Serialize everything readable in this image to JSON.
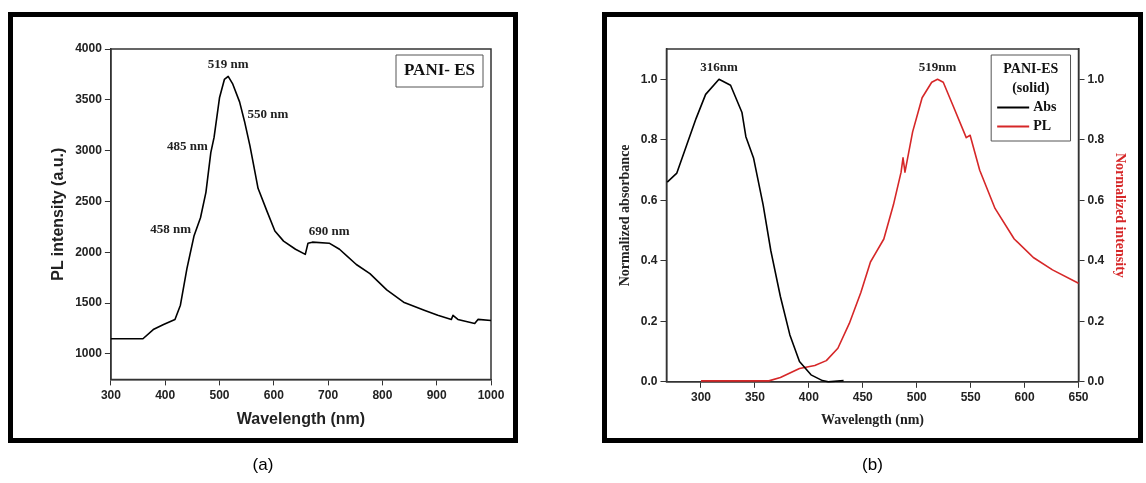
{
  "chart_data": [
    {
      "type": "line",
      "xlabel": "Wavelength (nm)",
      "ylabel": "PL intensity (a.u.)",
      "legend_title": "PANI- ES",
      "xlim": [
        300,
        1000
      ],
      "xticks": [
        300,
        400,
        500,
        600,
        700,
        800,
        900,
        1000
      ],
      "ylim": [
        750,
        4000
      ],
      "yticks": [
        1000,
        1500,
        2000,
        2500,
        3000,
        3500,
        4000
      ],
      "series": [
        {
          "color": "#000000",
          "x": [
            300,
            359,
            378,
            397,
            418,
            428,
            440,
            453,
            465,
            475,
            484,
            490,
            500,
            509,
            516,
            524,
            537,
            546,
            556,
            571,
            587,
            602,
            618,
            640,
            658,
            663,
            671,
            702,
            721,
            752,
            777,
            808,
            839,
            877,
            902,
            927,
            930,
            939,
            970,
            976,
            1000
          ],
          "values": [
            1150,
            1150,
            1240,
            1290,
            1340,
            1480,
            1840,
            2160,
            2340,
            2590,
            2980,
            3130,
            3520,
            3700,
            3730,
            3660,
            3480,
            3290,
            3050,
            2630,
            2410,
            2210,
            2110,
            2030,
            1980,
            2090,
            2100,
            2090,
            2030,
            1880,
            1790,
            1630,
            1510,
            1430,
            1380,
            1340,
            1380,
            1340,
            1300,
            1340,
            1330
          ]
        }
      ],
      "annotations": [
        {
          "text": "519 nm",
          "x": 516,
          "y": 3730
        },
        {
          "text": "485 nm",
          "x": 484,
          "y": 2980
        },
        {
          "text": "458 nm",
          "x": 453,
          "y": 2160
        },
        {
          "text": "550 nm",
          "x": 546,
          "y": 3290
        },
        {
          "text": "690 nm",
          "x": 702,
          "y": 2090
        },
        "(a)"
      ]
    },
    {
      "type": "line",
      "xlabel": "Wavelength (nm)",
      "ylabel": "Normalized absorbance",
      "y2label": "Normalized intensity",
      "legend_title": "PANI-ES\n(solid)",
      "legend": "top right",
      "xlim": [
        268,
        650
      ],
      "xticks": [
        300,
        350,
        400,
        450,
        500,
        550,
        600,
        650
      ],
      "ylim": [
        0,
        1.1
      ],
      "yticks": [
        {
          "value": 0,
          "label": "0.0"
        },
        {
          "value": 0.2,
          "label": "0.2"
        },
        {
          "value": 0.4,
          "label": "0.4"
        },
        {
          "value": 0.6,
          "label": "0.6"
        },
        {
          "value": 0.8,
          "label": "0.8"
        },
        {
          "value": 1,
          "label": "1.0"
        }
      ],
      "y2lim": [
        0,
        1.1
      ],
      "y2ticks": [
        {
          "value": 0,
          "label": "0.0"
        },
        {
          "value": 0.2,
          "label": "0.2"
        },
        {
          "value": 0.4,
          "label": "0.4"
        },
        {
          "value": 0.6,
          "label": "0.6"
        },
        {
          "value": 0.8,
          "label": "0.8"
        },
        {
          "value": 1,
          "label": "1.0"
        }
      ],
      "series": [
        {
          "name": "Abs",
          "color": "#000000",
          "x": [
            268.7,
            277.6,
            286.5,
            295.4,
            304.3,
            316.7,
            327.4,
            338,
            341.6,
            348.7,
            357.6,
            364.7,
            373.6,
            382.4,
            391.3,
            402,
            412.6,
            418,
            432.2
          ],
          "values": [
            0.66,
            0.69,
            0.78,
            0.87,
            0.95,
            1.0,
            0.98,
            0.89,
            0.81,
            0.74,
            0.585,
            0.434,
            0.282,
            0.155,
            0.067,
            0.023,
            0.004,
            0,
            0.004
          ]
        },
        {
          "name": "PL",
          "color": "#d62728",
          "axis": "y2",
          "x": [
            300,
            362.9,
            373.6,
            391.3,
            405.5,
            416.2,
            426.9,
            437.5,
            448.2,
            457.1,
            469.5,
            478.4,
            485.5,
            487.3,
            489.1,
            496.2,
            505,
            513.9,
            519.3,
            524.6,
            533.5,
            545.9,
            549.5,
            558.4,
            572.6,
            590.4,
            608.1,
            625.9,
            650
          ],
          "values": [
            0.003,
            0.003,
            0.014,
            0.044,
            0.054,
            0.07,
            0.111,
            0.193,
            0.295,
            0.396,
            0.472,
            0.585,
            0.693,
            0.74,
            0.693,
            0.826,
            0.939,
            0.99,
            1.0,
            0.99,
            0.914,
            0.807,
            0.815,
            0.699,
            0.573,
            0.472,
            0.411,
            0.37,
            0.326
          ]
        }
      ],
      "annotations": [
        {
          "text": "316nm",
          "x": 316.7,
          "y": 1.0
        },
        {
          "text": "519nm",
          "x": 519.3,
          "y": 1.0
        },
        "(b)"
      ]
    }
  ]
}
